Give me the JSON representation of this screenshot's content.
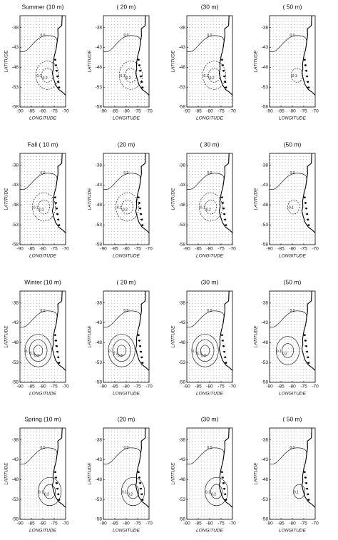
{
  "axes": {
    "xlabel": "LONGITUDE",
    "ylabel": "LATITUDE",
    "xlim": [
      -90,
      -70
    ],
    "ylim": [
      -58,
      -35
    ],
    "xticks": [
      -90,
      -85,
      -80,
      -75,
      -70
    ],
    "yticks": [
      -38,
      -43,
      -48,
      -53,
      -58
    ]
  },
  "panels": [
    {
      "title": "Summer (10 m)",
      "contour_labels": [
        "0.0",
        "-0.1",
        "-0.2"
      ]
    },
    {
      "title": "( 20 m)",
      "contour_labels": [
        "0.0",
        "-0.1",
        "-0.2"
      ]
    },
    {
      "title": "(30 m)",
      "contour_labels": [
        "0.0",
        "-0.1",
        "-0.2"
      ]
    },
    {
      "title": "( 50 m)",
      "contour_labels": [
        "0.0",
        "-0.1"
      ]
    },
    {
      "title": "Fall ( 10 m)",
      "contour_labels": [
        "0.0",
        "-0.1",
        "-0.2"
      ]
    },
    {
      "title": "(20 m)",
      "contour_labels": [
        "0.0",
        "-0.1",
        "-0.2"
      ]
    },
    {
      "title": "( 30 m)",
      "contour_labels": [
        "0.0",
        "-0.1",
        "-0.2"
      ]
    },
    {
      "title": "(50 m)",
      "contour_labels": [
        "0.0",
        "-0.1"
      ]
    },
    {
      "title": "Winter (10 m)",
      "contour_labels": [
        "0.0",
        "0.1",
        "0.2",
        "0.3"
      ]
    },
    {
      "title": "( 20 m)",
      "contour_labels": [
        "0.0",
        "0.1",
        "0.2",
        "0.3"
      ]
    },
    {
      "title": "(30 m)",
      "contour_labels": [
        "0.0",
        "0.1",
        "0.2",
        "0.3"
      ]
    },
    {
      "title": "(50 m)",
      "contour_labels": [
        "0.0",
        "0.1",
        "0.2"
      ]
    },
    {
      "title": "Spring (10 m)",
      "contour_labels": [
        "0.0",
        "0.1",
        "0.2"
      ]
    },
    {
      "title": "(20 m)",
      "contour_labels": [
        "0.0",
        "0.1",
        "0.2"
      ]
    },
    {
      "title": "(30 m)",
      "contour_labels": [
        "0.0",
        "0.1",
        "0.2"
      ]
    },
    {
      "title": "( 50 m)",
      "contour_labels": [
        "0.0",
        "0.1"
      ]
    }
  ]
}
